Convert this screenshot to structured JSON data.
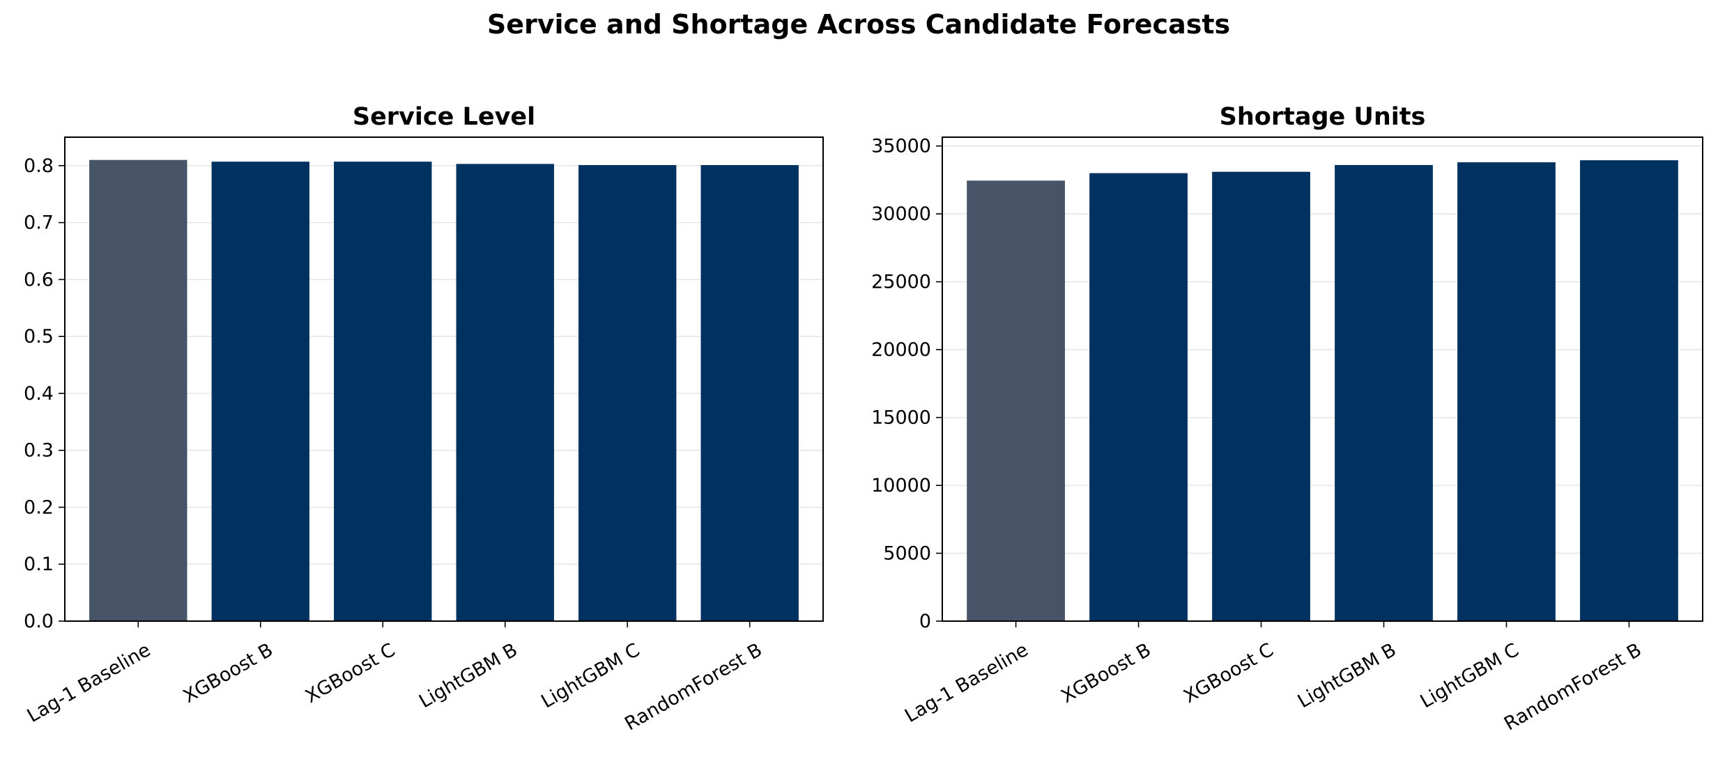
{
  "figure_title": "Service and Shortage Across Candidate Forecasts",
  "colors": {
    "baseline": "#475467",
    "model": "#003261",
    "grid": "#e5e5e5"
  },
  "chart_data": [
    {
      "type": "bar",
      "title": "Service Level",
      "categories": [
        "Lag-1 Baseline",
        "XGBoost B",
        "XGBoost C",
        "LightGBM B",
        "LightGBM C",
        "RandomForest B"
      ],
      "values": [
        0.81,
        0.807,
        0.807,
        0.803,
        0.801,
        0.801
      ],
      "ylim": [
        0,
        0.85
      ],
      "yticks": [
        0.0,
        0.1,
        0.2,
        0.3,
        0.4,
        0.5,
        0.6,
        0.7,
        0.8
      ],
      "ytick_labels": [
        "0.0",
        "0.1",
        "0.2",
        "0.3",
        "0.4",
        "0.5",
        "0.6",
        "0.7",
        "0.8"
      ],
      "xlabel": "",
      "ylabel": "",
      "grid": "y"
    },
    {
      "type": "bar",
      "title": "Shortage Units",
      "categories": [
        "Lag-1 Baseline",
        "XGBoost B",
        "XGBoost C",
        "LightGBM B",
        "LightGBM C",
        "RandomForest B"
      ],
      "values": [
        32450,
        33000,
        33100,
        33600,
        33800,
        33950
      ],
      "ylim": [
        0,
        35650
      ],
      "yticks": [
        0,
        5000,
        10000,
        15000,
        20000,
        25000,
        30000,
        35000
      ],
      "ytick_labels": [
        "0",
        "5000",
        "10000",
        "15000",
        "20000",
        "25000",
        "30000",
        "35000"
      ],
      "xlabel": "",
      "ylabel": "",
      "grid": "y"
    }
  ]
}
